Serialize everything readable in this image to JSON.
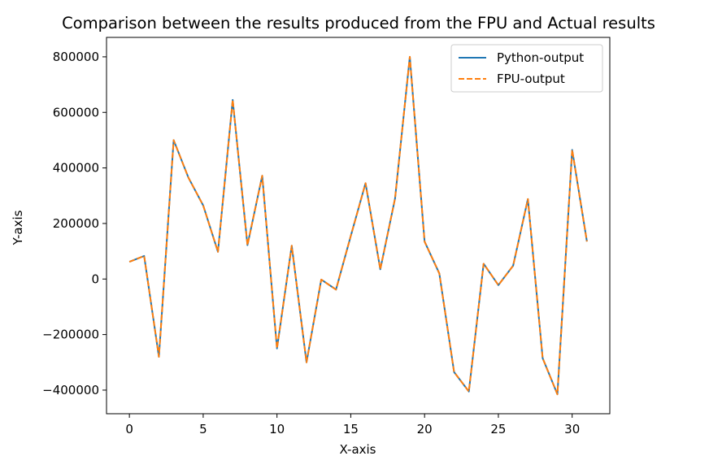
{
  "chart_data": {
    "type": "line",
    "title": "Comparison between the results produced from the FPU and Actual results",
    "xlabel": "X-axis",
    "ylabel": "Y-axis",
    "xlim": [
      -1.55,
      32.55
    ],
    "ylim": [
      -485000,
      870000
    ],
    "xticks": [
      0,
      5,
      10,
      15,
      20,
      25,
      30
    ],
    "yticks": [
      -400000,
      -200000,
      0,
      200000,
      400000,
      600000,
      800000
    ],
    "grid": false,
    "legend": "top-right",
    "x": [
      0,
      1,
      2,
      3,
      4,
      5,
      6,
      7,
      8,
      9,
      10,
      11,
      12,
      13,
      14,
      15,
      16,
      17,
      18,
      19,
      20,
      21,
      22,
      23,
      24,
      25,
      26,
      27,
      28,
      29,
      30,
      31
    ],
    "series": [
      {
        "name": "Python-output",
        "color": "#1f77b4",
        "style": "solid",
        "values": [
          62000,
          83000,
          -280000,
          500000,
          365000,
          265000,
          98000,
          645000,
          122000,
          372000,
          -250000,
          120000,
          -300000,
          -2000,
          -38000,
          155000,
          345000,
          35000,
          290000,
          800000,
          135000,
          20000,
          -335000,
          -405000,
          55000,
          -22000,
          48000,
          288000,
          -285000,
          -415000,
          465000,
          135000
        ]
      },
      {
        "name": "FPU-output",
        "color": "#ff7f0e",
        "style": "dashed",
        "values": [
          62000,
          83000,
          -280000,
          500000,
          365000,
          265000,
          98000,
          645000,
          122000,
          372000,
          -250000,
          120000,
          -300000,
          -2000,
          -38000,
          155000,
          345000,
          35000,
          290000,
          800000,
          135000,
          20000,
          -335000,
          -405000,
          55000,
          -22000,
          48000,
          288000,
          -285000,
          -415000,
          465000,
          135000
        ]
      }
    ]
  }
}
